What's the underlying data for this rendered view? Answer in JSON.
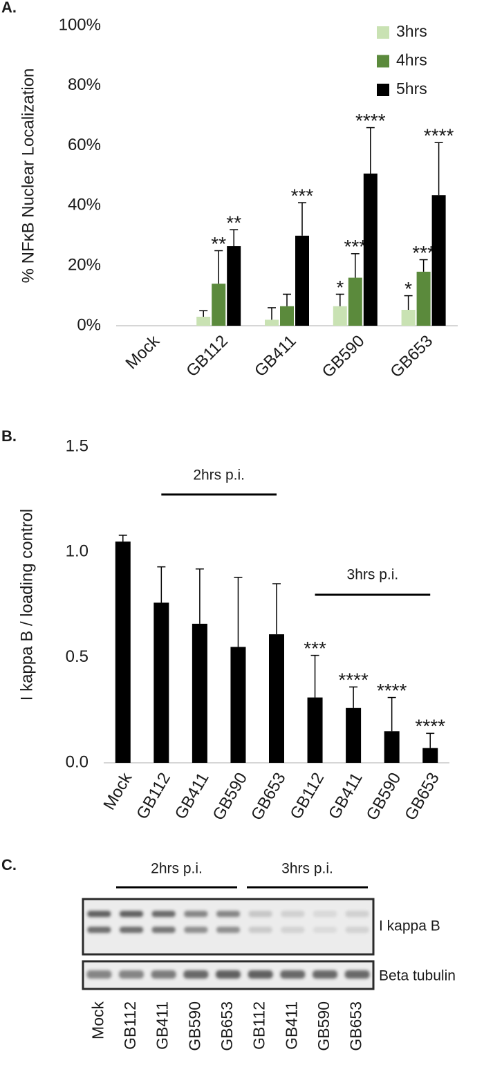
{
  "chart_data": [
    {
      "type": "bar",
      "panel_label": "A.",
      "y_label": "% NFκB Nuclear Localization",
      "categories": [
        "Mock",
        "GB112",
        "GB411",
        "GB590",
        "GB653"
      ],
      "series": [
        {
          "name": "3hrs",
          "color": "#c9e2b3",
          "values": [
            0,
            3,
            2,
            6.5,
            5.3
          ],
          "errors": [
            null,
            2,
            4,
            4,
            4.7
          ],
          "annotations": [
            null,
            null,
            null,
            "*",
            "*"
          ]
        },
        {
          "name": "4hrs",
          "color": "#5b8a3c",
          "values": [
            0,
            14,
            6.5,
            16,
            18
          ],
          "errors": [
            null,
            11,
            4,
            8,
            4
          ],
          "annotations": [
            null,
            "**",
            null,
            "***",
            "***"
          ]
        },
        {
          "name": "5hrs",
          "color": "#000000",
          "values": [
            0,
            26.5,
            30,
            50.7,
            43.5
          ],
          "errors": [
            null,
            5.5,
            11,
            15.3,
            17.5
          ],
          "annotations": [
            null,
            "**",
            "***",
            "****",
            "****"
          ]
        }
      ],
      "ylim": [
        0,
        100
      ],
      "yticks": [
        {
          "value": 0,
          "label": "0%"
        },
        {
          "value": 20,
          "label": "20%"
        },
        {
          "value": 40,
          "label": "40%"
        },
        {
          "value": 60,
          "label": "60%"
        },
        {
          "value": 80,
          "label": "80%"
        },
        {
          "value": 100,
          "label": "100%"
        }
      ],
      "legend": "top-right"
    },
    {
      "type": "bar",
      "panel_label": "B.",
      "y_label": "I kappa B / loading control",
      "categories": [
        "Mock",
        "GB112",
        "GB411",
        "GB590",
        "GB653",
        "GB112",
        "GB411",
        "GB590",
        "GB653"
      ],
      "values": [
        1.05,
        0.76,
        0.66,
        0.55,
        0.61,
        0.31,
        0.26,
        0.15,
        0.07
      ],
      "errors": [
        0.03,
        0.17,
        0.26,
        0.33,
        0.24,
        0.2,
        0.1,
        0.16,
        0.07
      ],
      "annotations": [
        null,
        null,
        null,
        null,
        null,
        "***",
        "****",
        "****",
        "****"
      ],
      "color": "#000000",
      "group_labels": [
        "2hrs p.i.",
        "3hrs p.i."
      ],
      "ylim": [
        0,
        1.5
      ],
      "yticks": [
        {
          "value": 0,
          "label": "0.0"
        },
        0.5,
        {
          "value": 1,
          "label": "1.0"
        },
        1.5
      ]
    }
  ],
  "blot": {
    "panel_label": "C.",
    "group_labels": [
      "2hrs p.i.",
      "3hrs p.i."
    ],
    "rows": [
      "I kappa B",
      "Beta tubulin"
    ],
    "lanes": [
      "Mock",
      "GB112",
      "GB411",
      "GB590",
      "GB653",
      "GB112",
      "GB411",
      "GB590",
      "GB653"
    ]
  }
}
